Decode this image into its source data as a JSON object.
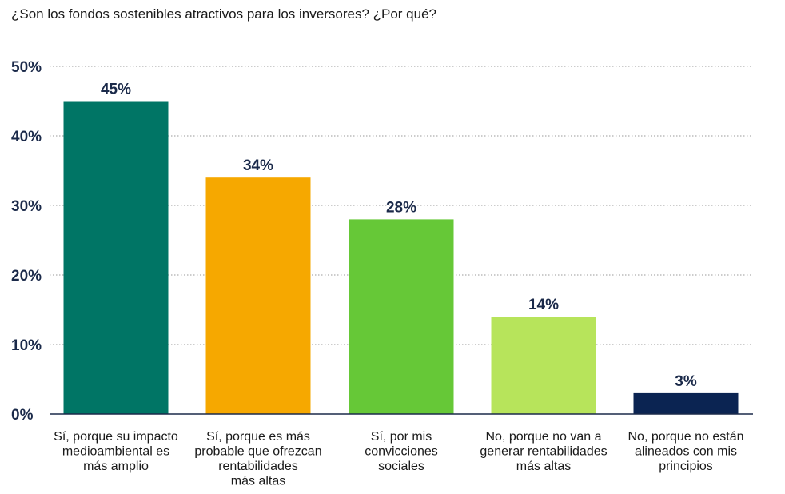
{
  "title": "¿Son los fondos sostenibles atractivos para los inversores? ¿Por qué?",
  "chart_data": {
    "type": "bar",
    "title": "¿Son los fondos sostenibles atractivos para los inversores? ¿Por qué?",
    "xlabel": "",
    "ylabel": "",
    "ylim": [
      0,
      50
    ],
    "yticks": [
      0,
      10,
      20,
      30,
      40,
      50
    ],
    "ytick_labels": [
      "0%",
      "10%",
      "20%",
      "30%",
      "40%",
      "50%"
    ],
    "grid": true,
    "categories": [
      [
        "Sí, porque su impacto",
        "medioambiental es",
        "más amplio"
      ],
      [
        "Sí, porque es más",
        "probable que ofrezcan",
        "rentabilidades",
        "más altas"
      ],
      [
        "Sí, por mis",
        "convicciones",
        "sociales"
      ],
      [
        "No, porque no van a",
        "generar rentabilidades",
        "más altas"
      ],
      [
        "No, porque no están",
        "alineados con mis",
        "principios"
      ]
    ],
    "values": [
      45,
      34,
      28,
      14,
      3
    ],
    "data_labels": [
      "45%",
      "34%",
      "28%",
      "14%",
      "3%"
    ],
    "colors": [
      "#007565",
      "#F6A800",
      "#66C837",
      "#B7E45B",
      "#0B2452"
    ]
  }
}
